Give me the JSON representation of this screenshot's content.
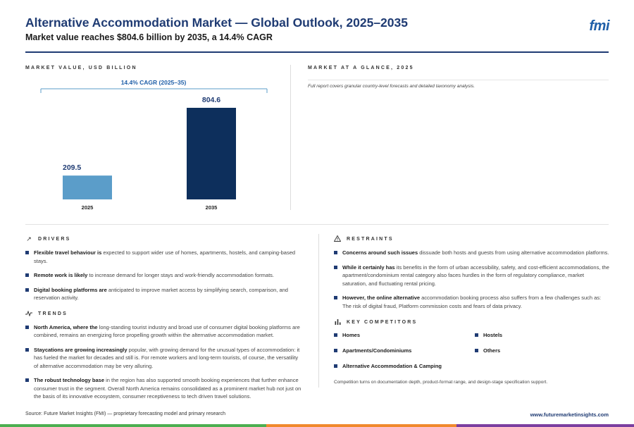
{
  "header": {
    "title": "Alternative Accommodation Market — Global Outlook, 2025–2035",
    "subtitle": "Market value reaches $804.6 billion by 2035, a 14.4% CAGR",
    "logo": "fmi"
  },
  "market_value_label": "MARKET VALUE, USD BILLION",
  "glance": {
    "label": "MARKET AT A GLANCE, 2025",
    "note": "Full report covers granular country-level forecasts and detailed taxonomy analysis."
  },
  "chart_data": {
    "type": "bar",
    "categories": [
      "2025",
      "2035"
    ],
    "values": [
      209.5,
      804.6
    ],
    "value_labels": [
      "209.5",
      "804.6"
    ],
    "colors": [
      "#5b9dc9",
      "#0d2f5c"
    ],
    "annotation": "14.4% CAGR (2025–35)",
    "ylim": [
      0,
      804.6
    ],
    "grid": false
  },
  "drivers": {
    "label": "DRIVERS",
    "items": [
      {
        "bold": "Flexible travel behaviour is",
        "text": " expected to support wider use of homes, apartments, hostels, and camping-based stays."
      },
      {
        "bold": "Remote work is likely",
        "text": " to increase demand for longer stays and work-friendly accommodation formats."
      },
      {
        "bold": "Digital booking platforms are",
        "text": " anticipated to improve market access by simplifying search, comparison, and reservation activity."
      }
    ]
  },
  "trends": {
    "label": "TRENDS",
    "items": [
      {
        "bold": "North America, where the",
        "text": " long-standing tourist industry and broad use of consumer digital booking platforms are combined, remains an energizing force propelling growth within the alternative accommodation market."
      },
      {
        "bold": "Staycations are growing increasingly",
        "text": " popular, with growing demand for the unusual types of accommodation: it has fueled the market for decades and still is. For remote workers and long-term tourists, of course, the versatility of alternative accommodation may be very alluring."
      },
      {
        "bold": "The robust technology base",
        "text": " in the region has also supported smooth booking experiences that further enhance consumer trust in the segment. Overall North America remains consolidated as a prominent market hub not just on the basis of its innovative ecosystem, consumer receptiveness to tech driven travel solutions."
      }
    ]
  },
  "restraints": {
    "label": "RESTRAINTS",
    "items": [
      {
        "bold": "Concerns around such issues",
        "text": " dissuade both hosts and guests from using alternative accommodation platforms."
      },
      {
        "bold": "While it certainly has",
        "text": " its benefits in the form of urban accessibility, safety, and cost-efficient accommodations, the apartment/condominium rental category also faces hurdles in the form of regulatory compliance, market saturation, and fluctuating rental pricing."
      },
      {
        "bold": "However, the online alternative",
        "text": " accommodation booking process also suffers from a few challenges such as: The risk of digital fraud, Platform commission costs and fears of data privacy."
      }
    ]
  },
  "competitors": {
    "label": "KEY COMPETITORS",
    "items": [
      "Homes",
      "Hostels",
      "Apartments/Condominiums",
      "Others",
      "Alternative Accommodation & Camping"
    ],
    "note": "Competition turns on documentation depth, product-format range, and design-stage specification support."
  },
  "footer": {
    "source": "Source: Future Market Insights (FMI) — proprietary forecasting model and primary research",
    "url": "www.futuremarketinsights.com",
    "bar_colors": [
      "#4caf50",
      "#f0892d",
      "#7b3fa0"
    ]
  }
}
